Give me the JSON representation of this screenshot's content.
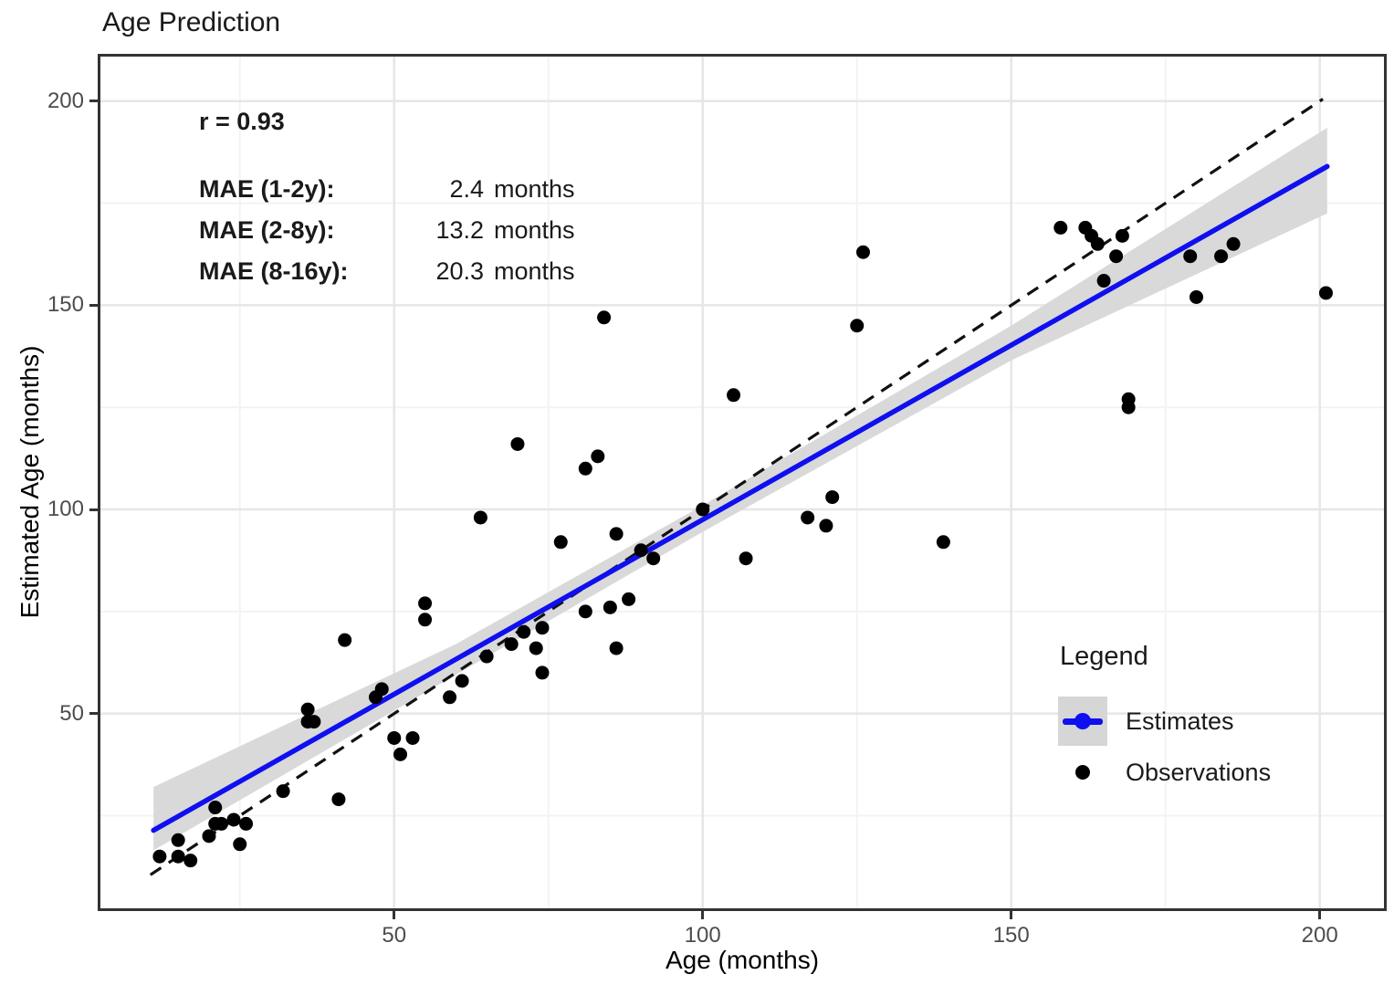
{
  "title": "Age Prediction",
  "axes": {
    "x_label": "Age (months)",
    "y_label": "Estimated Age (months)"
  },
  "annotation": {
    "r_text": "r = 0.93",
    "mae_rows": [
      {
        "label": "MAE (1-2y):",
        "value": "2.4",
        "unit": "months"
      },
      {
        "label": "MAE (2-8y):",
        "value": "13.2",
        "unit": "months"
      },
      {
        "label": "MAE (8-16y):",
        "value": "20.3",
        "unit": "months"
      }
    ]
  },
  "legend": {
    "title": "Legend",
    "items": [
      {
        "label": "Estimates",
        "type": "line"
      },
      {
        "label": "Observations",
        "type": "point"
      }
    ]
  },
  "colors": {
    "estimate_blue": "#0f0ff0",
    "ribbon_gray": "#d9d9d9",
    "point_black": "#000000",
    "dashed_black": "#111111",
    "grid_major": "#e6e6e6",
    "grid_minor": "#f3f3f3",
    "axis": "#333333",
    "tick_label": "#4d4d4d",
    "legend_key_bg": "#d6d6d6"
  },
  "chart_data": {
    "type": "scatter",
    "title": "Age Prediction",
    "xlabel": "Age (months)",
    "ylabel": "Estimated Age (months)",
    "xlim": [
      2.4,
      210.4
    ],
    "ylim": [
      2.3,
      210.9
    ],
    "x_ticks": [
      50,
      100,
      150,
      200
    ],
    "y_ticks": [
      50,
      100,
      150,
      200
    ],
    "minor_ticks": [
      25,
      75,
      125,
      175
    ],
    "grid": true,
    "legend_position": "inside bottom-right",
    "series": [
      {
        "name": "Confidence band",
        "type": "area",
        "x": [
          11,
          60,
          100,
          150,
          201.2
        ],
        "upper": [
          32,
          67,
          101,
          145,
          193.5
        ],
        "lower": [
          16.5,
          59.5,
          94.5,
          136.5,
          172.5
        ]
      },
      {
        "name": "Identity (y = x)",
        "type": "dashed-line",
        "points": [
          [
            10.5,
            10.5
          ],
          [
            200.5,
            200.5
          ]
        ]
      },
      {
        "name": "Estimates",
        "type": "line",
        "points": [
          [
            11,
            21.4
          ],
          [
            201.2,
            184
          ]
        ]
      },
      {
        "name": "Observations",
        "type": "scatter",
        "points": [
          [
            12,
            15
          ],
          [
            15,
            15
          ],
          [
            15,
            19
          ],
          [
            17,
            14
          ],
          [
            20,
            20
          ],
          [
            21,
            23
          ],
          [
            21,
            27
          ],
          [
            22,
            23
          ],
          [
            24,
            24
          ],
          [
            25,
            18
          ],
          [
            26,
            23
          ],
          [
            32,
            31
          ],
          [
            36,
            48
          ],
          [
            36,
            51
          ],
          [
            37,
            48
          ],
          [
            41,
            29
          ],
          [
            42,
            68
          ],
          [
            47,
            54
          ],
          [
            48,
            56
          ],
          [
            50,
            44
          ],
          [
            51,
            40
          ],
          [
            53,
            44
          ],
          [
            55,
            73
          ],
          [
            55,
            77
          ],
          [
            59,
            54
          ],
          [
            61,
            58
          ],
          [
            64,
            98
          ],
          [
            65,
            64
          ],
          [
            69,
            67
          ],
          [
            70,
            116
          ],
          [
            71,
            70
          ],
          [
            73,
            66
          ],
          [
            74,
            60
          ],
          [
            74,
            71
          ],
          [
            77,
            92
          ],
          [
            81,
            75
          ],
          [
            81,
            110
          ],
          [
            83,
            113
          ],
          [
            84,
            147
          ],
          [
            85,
            76
          ],
          [
            86,
            66
          ],
          [
            86,
            94
          ],
          [
            88,
            78
          ],
          [
            90,
            90
          ],
          [
            92,
            88
          ],
          [
            100,
            100
          ],
          [
            105,
            128
          ],
          [
            107,
            88
          ],
          [
            117,
            98
          ],
          [
            120,
            96
          ],
          [
            121,
            103
          ],
          [
            125,
            145
          ],
          [
            126,
            163
          ],
          [
            139,
            92
          ],
          [
            158,
            169
          ],
          [
            162,
            169
          ],
          [
            163,
            167
          ],
          [
            164,
            165
          ],
          [
            165,
            156
          ],
          [
            167,
            162
          ],
          [
            168,
            167
          ],
          [
            169,
            125
          ],
          [
            169,
            127
          ],
          [
            179,
            162
          ],
          [
            180,
            152
          ],
          [
            184,
            162
          ],
          [
            186,
            165
          ],
          [
            201,
            153
          ]
        ]
      }
    ]
  }
}
